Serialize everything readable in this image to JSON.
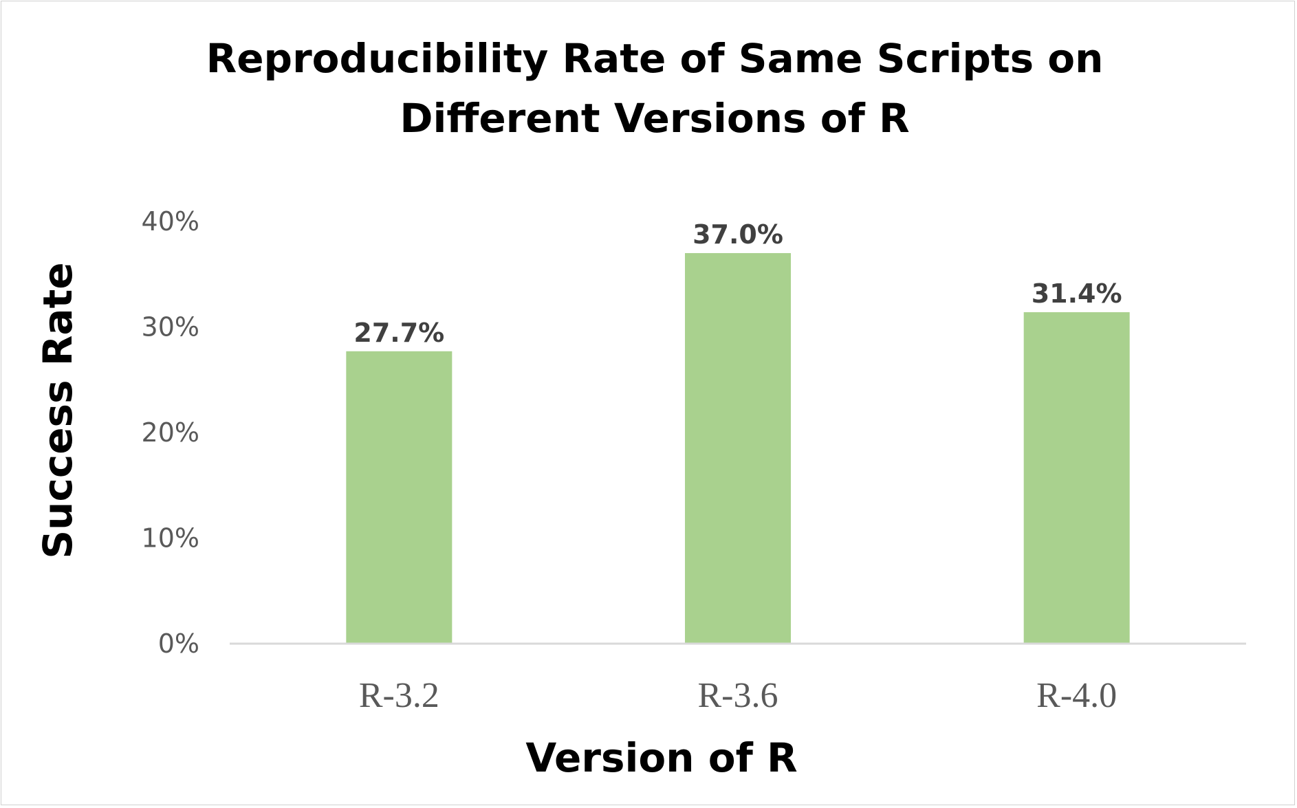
{
  "chart_data": {
    "type": "bar",
    "title_lines": [
      "Reproducibility Rate of Same Scripts on",
      "Different Versions of R"
    ],
    "xlabel": "Version of R",
    "ylabel": "Success Rate",
    "categories": [
      "R-3.2",
      "R-3.6",
      "R-4.0"
    ],
    "values": [
      27.7,
      37.0,
      31.4
    ],
    "data_labels": [
      "27.7%",
      "37.0%",
      "31.4%"
    ],
    "yticks": [
      0,
      10,
      20,
      30,
      40
    ],
    "ytick_labels": [
      "0%",
      "10%",
      "20%",
      "30%",
      "40%"
    ],
    "ylim": [
      0,
      40
    ],
    "grid": false,
    "legend": "none",
    "bar_color": "#a9d18e",
    "axis_line_color": "#d9d9d9"
  }
}
